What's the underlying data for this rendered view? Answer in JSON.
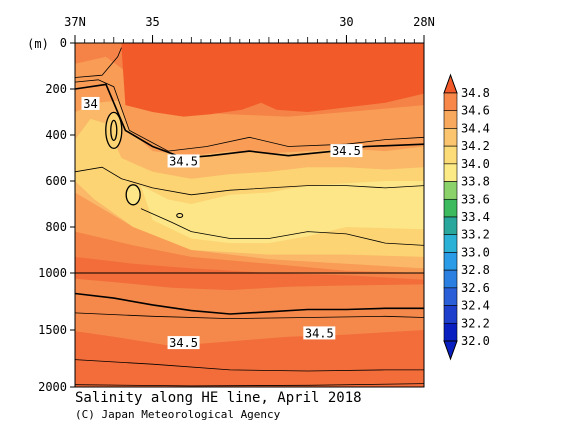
{
  "chart_data": {
    "type": "heatmap",
    "title": "Salinity along HE line, April 2018",
    "credit": "(C) Japan Meteorological Agency",
    "xlabel": "",
    "ylabel": "(m)",
    "x_ticks": [
      "37N",
      "35",
      "30",
      "28N"
    ],
    "x_tick_values": [
      37,
      35,
      30,
      28
    ],
    "xlim": [
      37,
      28
    ],
    "y_ticks": [
      "0",
      "200",
      "400",
      "600",
      "800",
      "1000",
      "1500",
      "2000"
    ],
    "y_tick_values": [
      0,
      200,
      400,
      600,
      800,
      1000,
      1500,
      2000
    ],
    "ylim": [
      0,
      2000
    ],
    "colorbar": {
      "levels": [
        "34.8",
        "34.6",
        "34.4",
        "34.2",
        "34.0",
        "33.8",
        "33.6",
        "33.4",
        "33.2",
        "33.0",
        "32.8",
        "32.6",
        "32.4",
        "32.2",
        "32.0"
      ],
      "colors": [
        "#f25a2a",
        "#f7884a",
        "#f9a95e",
        "#fbc46e",
        "#fcdc78",
        "#fbea85",
        "#8cd26a",
        "#3db95e",
        "#2aa79c",
        "#2bb0d6",
        "#2a9be6",
        "#2a7fe0",
        "#2a5fd8",
        "#1e3fcc",
        "#0a1fbf"
      ]
    },
    "contour_labels": [
      {
        "text": "34",
        "lat": 36.6,
        "depth": 265
      },
      {
        "text": "34.5",
        "lat": 34.2,
        "depth": 515
      },
      {
        "text": "34.5",
        "lat": 30.0,
        "depth": 470
      },
      {
        "text": "34.5",
        "lat": 34.2,
        "depth": 1615
      },
      {
        "text": "34.5",
        "lat": 30.7,
        "depth": 1530
      }
    ]
  },
  "colors": {
    "top_layer": "#f25a2a",
    "layer_346": "#f58246",
    "layer_344": "#f89c56",
    "layer_342": "#fab868",
    "layer_340": "#fcd473",
    "layer_338": "#fce687",
    "deep": "#f5894b",
    "deepest": "#f26d3a"
  }
}
